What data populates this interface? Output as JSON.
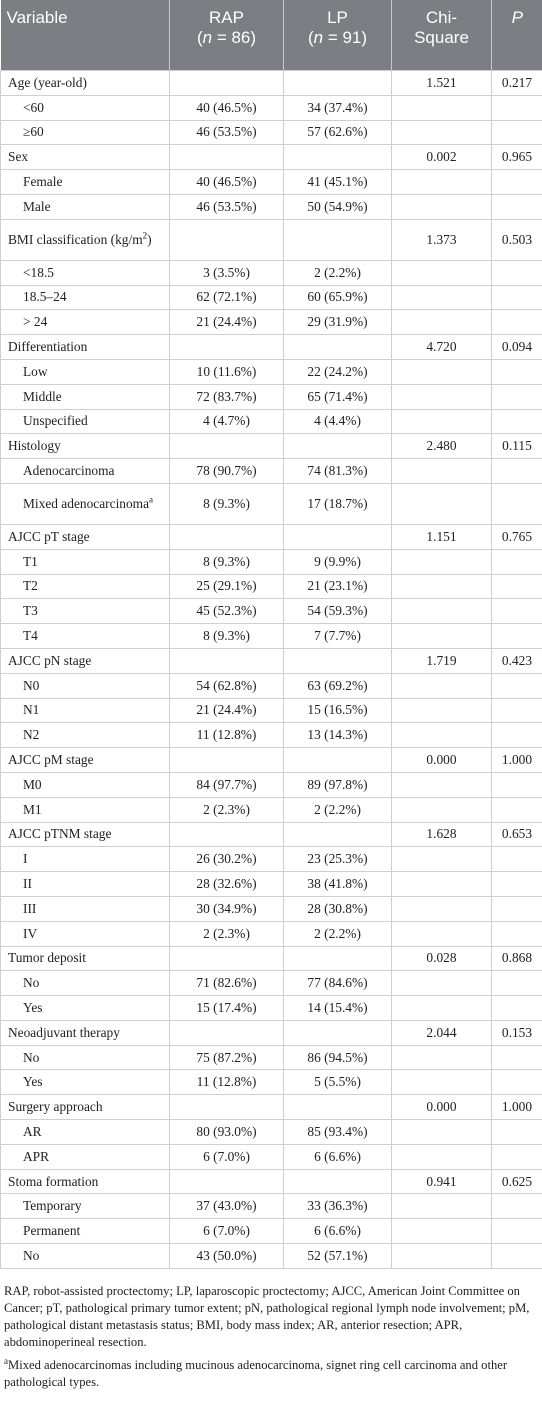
{
  "header": {
    "variable": "Variable",
    "rap": "RAP",
    "rap_n": "= 86)",
    "lp": "LP",
    "lp_n": "= 91)",
    "chi1": "Chi-",
    "chi2": "Square",
    "p": "P",
    "n_label": "n",
    "open": "("
  },
  "rows": [
    {
      "label": "Age (year-old)",
      "level": 0,
      "rap": "",
      "lp": "",
      "chi": "1.521",
      "p": "0.217"
    },
    {
      "label": "<60",
      "level": 1,
      "rap": "40 (46.5%)",
      "lp": "34 (37.4%)",
      "chi": "",
      "p": ""
    },
    {
      "label": "≥60",
      "level": 1,
      "rap": "46 (53.5%)",
      "lp": "57 (62.6%)",
      "chi": "",
      "p": ""
    },
    {
      "label": "Sex",
      "level": 0,
      "rap": "",
      "lp": "",
      "chi": "0.002",
      "p": "0.965"
    },
    {
      "label": "Female",
      "level": 1,
      "rap": "40 (46.5%)",
      "lp": "41 (45.1%)",
      "chi": "",
      "p": ""
    },
    {
      "label": "Male",
      "level": 1,
      "rap": "46 (53.5%)",
      "lp": "50 (54.9%)",
      "chi": "",
      "p": ""
    },
    {
      "label": "BMI classification (kg/m",
      "sup": "2",
      "label_end": ")",
      "level": 0,
      "tall": true,
      "rap": "",
      "lp": "",
      "chi": "1.373",
      "p": "0.503"
    },
    {
      "label": "<18.5",
      "level": 1,
      "rap": "3 (3.5%)",
      "lp": "2 (2.2%)",
      "chi": "",
      "p": ""
    },
    {
      "label": "18.5–24",
      "level": 1,
      "rap": "62 (72.1%)",
      "lp": "60 (65.9%)",
      "chi": "",
      "p": ""
    },
    {
      "label": "> 24",
      "level": 1,
      "rap": "21 (24.4%)",
      "lp": "29 (31.9%)",
      "chi": "",
      "p": ""
    },
    {
      "label": "Differentiation",
      "level": 0,
      "rap": "",
      "lp": "",
      "chi": "4.720",
      "p": "0.094"
    },
    {
      "label": "Low",
      "level": 1,
      "rap": "10 (11.6%)",
      "lp": "22 (24.2%)",
      "chi": "",
      "p": ""
    },
    {
      "label": "Middle",
      "level": 1,
      "rap": "72 (83.7%)",
      "lp": "65 (71.4%)",
      "chi": "",
      "p": ""
    },
    {
      "label": "Unspecified",
      "level": 1,
      "rap": "4 (4.7%)",
      "lp": "4 (4.4%)",
      "chi": "",
      "p": ""
    },
    {
      "label": "Histology",
      "level": 0,
      "rap": "",
      "lp": "",
      "chi": "2.480",
      "p": "0.115"
    },
    {
      "label": "Adenocarcinoma",
      "level": 1,
      "rap": "78 (90.7%)",
      "lp": "74 (81.3%)",
      "chi": "",
      "p": ""
    },
    {
      "label": "Mixed adenocarcinoma",
      "sup": "a",
      "level": 1,
      "tall": true,
      "rap": "8 (9.3%)",
      "lp": "17 (18.7%)",
      "chi": "",
      "p": ""
    },
    {
      "label": "AJCC pT stage",
      "level": 0,
      "rap": "",
      "lp": "",
      "chi": "1.151",
      "p": "0.765"
    },
    {
      "label": "T1",
      "level": 1,
      "rap": "8 (9.3%)",
      "lp": "9 (9.9%)",
      "chi": "",
      "p": ""
    },
    {
      "label": "T2",
      "level": 1,
      "rap": "25 (29.1%)",
      "lp": "21 (23.1%)",
      "chi": "",
      "p": ""
    },
    {
      "label": "T3",
      "level": 1,
      "rap": "45 (52.3%)",
      "lp": "54 (59.3%)",
      "chi": "",
      "p": ""
    },
    {
      "label": "T4",
      "level": 1,
      "rap": "8 (9.3%)",
      "lp": "7 (7.7%)",
      "chi": "",
      "p": ""
    },
    {
      "label": "AJCC pN stage",
      "level": 0,
      "rap": "",
      "lp": "",
      "chi": "1.719",
      "p": "0.423"
    },
    {
      "label": "N0",
      "level": 1,
      "rap": "54 (62.8%)",
      "lp": "63 (69.2%)",
      "chi": "",
      "p": ""
    },
    {
      "label": "N1",
      "level": 1,
      "rap": "21 (24.4%)",
      "lp": "15 (16.5%)",
      "chi": "",
      "p": ""
    },
    {
      "label": "N2",
      "level": 1,
      "rap": "11 (12.8%)",
      "lp": "13 (14.3%)",
      "chi": "",
      "p": ""
    },
    {
      "label": "AJCC pM stage",
      "level": 0,
      "rap": "",
      "lp": "",
      "chi": "0.000",
      "p": "1.000"
    },
    {
      "label": "M0",
      "level": 1,
      "rap": "84 (97.7%)",
      "lp": "89 (97.8%)",
      "chi": "",
      "p": ""
    },
    {
      "label": "M1",
      "level": 1,
      "rap": "2 (2.3%)",
      "lp": "2 (2.2%)",
      "chi": "",
      "p": ""
    },
    {
      "label": "AJCC pTNM stage",
      "level": 0,
      "rap": "",
      "lp": "",
      "chi": "1.628",
      "p": "0.653"
    },
    {
      "label": "I",
      "level": 1,
      "rap": "26 (30.2%)",
      "lp": "23 (25.3%)",
      "chi": "",
      "p": ""
    },
    {
      "label": "II",
      "level": 1,
      "rap": "28 (32.6%)",
      "lp": "38 (41.8%)",
      "chi": "",
      "p": ""
    },
    {
      "label": "III",
      "level": 1,
      "rap": "30 (34.9%)",
      "lp": "28 (30.8%)",
      "chi": "",
      "p": ""
    },
    {
      "label": "IV",
      "level": 1,
      "rap": "2 (2.3%)",
      "lp": "2 (2.2%)",
      "chi": "",
      "p": ""
    },
    {
      "label": "Tumor deposit",
      "level": 0,
      "rap": "",
      "lp": "",
      "chi": "0.028",
      "p": "0.868"
    },
    {
      "label": "No",
      "level": 1,
      "rap": "71 (82.6%)",
      "lp": "77 (84.6%)",
      "chi": "",
      "p": ""
    },
    {
      "label": "Yes",
      "level": 1,
      "rap": "15 (17.4%)",
      "lp": "14 (15.4%)",
      "chi": "",
      "p": ""
    },
    {
      "label": "Neoadjuvant therapy",
      "level": 0,
      "rap": "",
      "lp": "",
      "chi": "2.044",
      "p": "0.153"
    },
    {
      "label": "No",
      "level": 1,
      "rap": "75 (87.2%)",
      "lp": "86 (94.5%)",
      "chi": "",
      "p": ""
    },
    {
      "label": "Yes",
      "level": 1,
      "rap": "11 (12.8%)",
      "lp": "5 (5.5%)",
      "chi": "",
      "p": ""
    },
    {
      "label": "Surgery approach",
      "level": 0,
      "rap": "",
      "lp": "",
      "chi": "0.000",
      "p": "1.000"
    },
    {
      "label": "AR",
      "level": 1,
      "rap": "80 (93.0%)",
      "lp": "85 (93.4%)",
      "chi": "",
      "p": ""
    },
    {
      "label": "APR",
      "level": 1,
      "rap": "6 (7.0%)",
      "lp": "6 (6.6%)",
      "chi": "",
      "p": ""
    },
    {
      "label": "Stoma formation",
      "level": 0,
      "rap": "",
      "lp": "",
      "chi": "0.941",
      "p": "0.625"
    },
    {
      "label": "Temporary",
      "level": 1,
      "rap": "37 (43.0%)",
      "lp": "33 (36.3%)",
      "chi": "",
      "p": ""
    },
    {
      "label": "Permanent",
      "level": 1,
      "rap": "6 (7.0%)",
      "lp": "6 (6.6%)",
      "chi": "",
      "p": ""
    },
    {
      "label": "No",
      "level": 1,
      "rap": "43 (50.0%)",
      "lp": "52 (57.1%)",
      "chi": "",
      "p": ""
    }
  ],
  "footnotes": {
    "abbrev": "RAP, robot-assisted proctectomy; LP, laparoscopic proctectomy; AJCC, American Joint Committee on Cancer; pT, pathological primary tumor extent; pN, pathological regional lymph node involvement; pM, pathological distant metastasis status; BMI, body mass index; AR, anterior resection; APR, abdominoperineal resection.",
    "note_mark": "a",
    "note": "Mixed adenocarcinomas including mucinous adenocarcinoma, signet ring cell carcinoma and other pathological types."
  }
}
